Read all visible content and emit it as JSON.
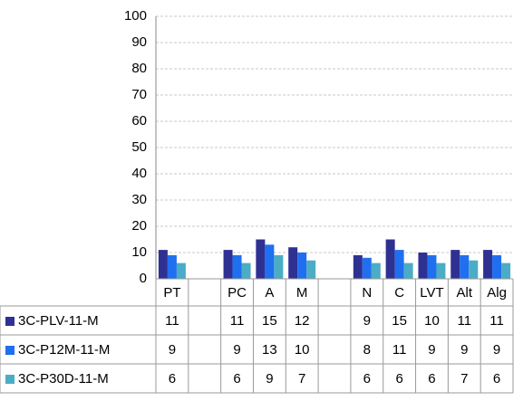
{
  "chart_data": {
    "type": "bar",
    "categories": [
      "PT",
      null,
      "PC",
      "A",
      "M",
      null,
      "N",
      "C",
      "LVT",
      "Alt",
      "Alg"
    ],
    "series": [
      {
        "name": "3C-PLV-11-M",
        "color": "#2e3192",
        "values": [
          11,
          null,
          11,
          15,
          12,
          null,
          9,
          15,
          10,
          11,
          11
        ]
      },
      {
        "name": "3C-P12M-11-M",
        "color": "#1f6ff0",
        "values": [
          9,
          null,
          9,
          13,
          10,
          null,
          8,
          11,
          9,
          9,
          9
        ]
      },
      {
        "name": "3C-P30D-11-M",
        "color": "#4bacc6",
        "values": [
          6,
          null,
          6,
          9,
          7,
          null,
          6,
          6,
          6,
          7,
          6
        ]
      }
    ],
    "ylim": [
      0,
      100
    ],
    "yticks": [
      0,
      10,
      20,
      30,
      40,
      50,
      60,
      70,
      80,
      90,
      100
    ],
    "grid": true,
    "data_table": true
  }
}
